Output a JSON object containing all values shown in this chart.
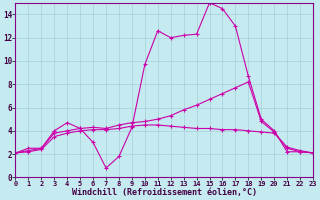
{
  "background_color": "#c5eaef",
  "grid_color": "#aad4dc",
  "line_color": "#cc00aa",
  "xlim": [
    0,
    23
  ],
  "ylim": [
    0,
    15
  ],
  "xlabel": "Windchill (Refroidissement éolien,°C)",
  "yticks": [
    0,
    2,
    4,
    6,
    8,
    10,
    12,
    14
  ],
  "xticks": [
    0,
    1,
    2,
    3,
    4,
    5,
    6,
    7,
    8,
    9,
    10,
    11,
    12,
    13,
    14,
    15,
    16,
    17,
    18,
    19,
    20,
    21,
    22,
    23
  ],
  "line1_x": [
    0,
    1,
    2,
    3,
    4,
    5,
    6,
    7,
    8,
    9,
    10,
    11,
    12,
    13,
    14,
    15,
    16,
    17,
    18,
    19,
    20,
    21,
    22,
    23
  ],
  "line1_y": [
    2.1,
    2.5,
    2.5,
    4.0,
    4.7,
    4.2,
    3.0,
    0.8,
    1.8,
    4.3,
    9.7,
    12.6,
    12.0,
    12.2,
    12.3,
    15.0,
    14.5,
    13.0,
    8.7,
    5.0,
    4.0,
    2.2,
    2.2,
    2.1
  ],
  "line2_x": [
    0,
    1,
    2,
    3,
    4,
    5,
    6,
    7,
    8,
    9,
    10,
    11,
    12,
    13,
    14,
    15,
    16,
    17,
    18,
    19,
    20,
    21,
    22,
    23
  ],
  "line2_y": [
    2.1,
    2.3,
    2.5,
    3.8,
    4.0,
    4.2,
    4.3,
    4.2,
    4.5,
    4.7,
    4.8,
    5.0,
    5.3,
    5.8,
    6.2,
    6.7,
    7.2,
    7.7,
    8.2,
    4.8,
    3.9,
    2.5,
    2.2,
    2.1
  ],
  "line3_x": [
    0,
    1,
    2,
    3,
    4,
    5,
    6,
    7,
    8,
    9,
    10,
    11,
    12,
    13,
    14,
    15,
    16,
    17,
    18,
    19,
    20,
    21,
    22,
    23
  ],
  "line3_y": [
    2.1,
    2.2,
    2.4,
    3.5,
    3.8,
    4.0,
    4.1,
    4.1,
    4.2,
    4.4,
    4.5,
    4.5,
    4.4,
    4.3,
    4.2,
    4.2,
    4.1,
    4.1,
    4.0,
    3.9,
    3.8,
    2.6,
    2.3,
    2.1
  ],
  "xlabel_fontsize": 6.0,
  "tick_fontsize": 5.5,
  "xtick_fontsize": 5.0,
  "marker": "+",
  "linewidth": 0.8,
  "markersize": 2.5
}
